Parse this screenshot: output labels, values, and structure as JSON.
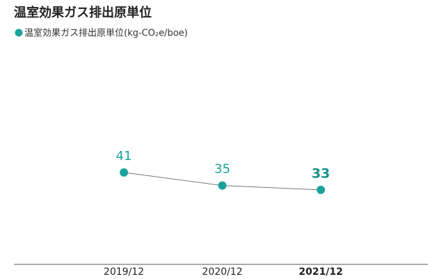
{
  "chart_data": {
    "type": "line",
    "title": "温室効果ガス排出原単位",
    "categories": [
      "2019/12",
      "2020/12",
      "2021/12"
    ],
    "series": [
      {
        "name": "温室効果ガス排出原単位(kg-CO₂e/boe)",
        "color": "#1ba39b",
        "values": [
          41,
          35,
          33
        ]
      }
    ],
    "ylim": [
      0,
      100
    ],
    "line_color": "#7a7a7a"
  }
}
